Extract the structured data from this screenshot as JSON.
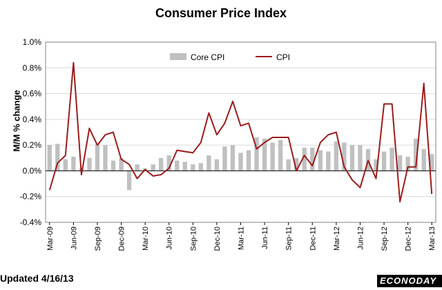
{
  "chart_data": {
    "type": "bar+line",
    "title": "Consumer Price Index",
    "ylabel": "M/M % change",
    "ylim": [
      -0.4,
      1.0
    ],
    "y_ticks": [
      "-0.4%",
      "-0.2%",
      "0.0%",
      "0.2%",
      "0.4%",
      "0.6%",
      "0.8%",
      "1.0%"
    ],
    "y_tick_values": [
      -0.4,
      -0.2,
      0.0,
      0.2,
      0.4,
      0.6,
      0.8,
      1.0
    ],
    "x_tick_labels": [
      "Mar-09",
      "Jun-09",
      "Sep-09",
      "Dec-09",
      "Mar-10",
      "Jun-10",
      "Sep-10",
      "Dec-10",
      "Mar-11",
      "Jun-11",
      "Sep-11",
      "Dec-11",
      "Mar-12",
      "Jun-12",
      "Sep-12",
      "Dec-12",
      "Mar-13"
    ],
    "grid": "horizontal",
    "legend_position": "top",
    "categories": [
      "Mar-09",
      "Apr-09",
      "May-09",
      "Jun-09",
      "Jul-09",
      "Aug-09",
      "Sep-09",
      "Oct-09",
      "Nov-09",
      "Dec-09",
      "Jan-10",
      "Feb-10",
      "Mar-10",
      "Apr-10",
      "May-10",
      "Jun-10",
      "Jul-10",
      "Aug-10",
      "Sep-10",
      "Oct-10",
      "Nov-10",
      "Dec-10",
      "Jan-11",
      "Feb-11",
      "Mar-11",
      "Apr-11",
      "May-11",
      "Jun-11",
      "Jul-11",
      "Aug-11",
      "Sep-11",
      "Oct-11",
      "Nov-11",
      "Dec-11",
      "Jan-12",
      "Feb-12",
      "Mar-12",
      "Apr-12",
      "May-12",
      "Jun-12",
      "Jul-12",
      "Aug-12",
      "Sep-12",
      "Oct-12",
      "Nov-12",
      "Dec-12",
      "Jan-13",
      "Feb-13",
      "Mar-13"
    ],
    "series": [
      {
        "name": "Core CPI",
        "kind": "bar",
        "color": "#c0c0c0",
        "values": [
          0.2,
          0.21,
          0.09,
          0.11,
          0.02,
          0.1,
          0.21,
          0.2,
          0.08,
          0.1,
          -0.15,
          0.05,
          0.02,
          0.05,
          0.1,
          0.12,
          0.08,
          0.07,
          0.05,
          0.06,
          0.12,
          0.09,
          0.19,
          0.2,
          0.14,
          0.16,
          0.26,
          0.25,
          0.22,
          0.24,
          0.09,
          0.1,
          0.18,
          0.18,
          0.16,
          0.15,
          0.23,
          0.22,
          0.2,
          0.2,
          0.17,
          0.09,
          0.15,
          0.18,
          0.12,
          0.11,
          0.25,
          0.17,
          0.13
        ]
      },
      {
        "name": "CPI",
        "kind": "line",
        "color": "#9b1c1c",
        "values": [
          -0.15,
          0.06,
          0.12,
          0.84,
          -0.03,
          0.33,
          0.2,
          0.28,
          0.3,
          0.09,
          0.05,
          -0.06,
          0.01,
          -0.04,
          -0.03,
          0.02,
          0.16,
          0.15,
          0.14,
          0.22,
          0.45,
          0.28,
          0.37,
          0.54,
          0.35,
          0.37,
          0.17,
          0.22,
          0.26,
          0.26,
          0.26,
          0.0,
          0.12,
          0.04,
          0.22,
          0.28,
          0.3,
          0.03,
          -0.07,
          -0.13,
          0.08,
          -0.06,
          0.52,
          0.52,
          -0.24,
          0.03,
          0.03,
          0.68,
          -0.18
        ]
      }
    ]
  },
  "footer": {
    "updated": "Updated 4/16/13",
    "brand": "ECONODAY"
  }
}
